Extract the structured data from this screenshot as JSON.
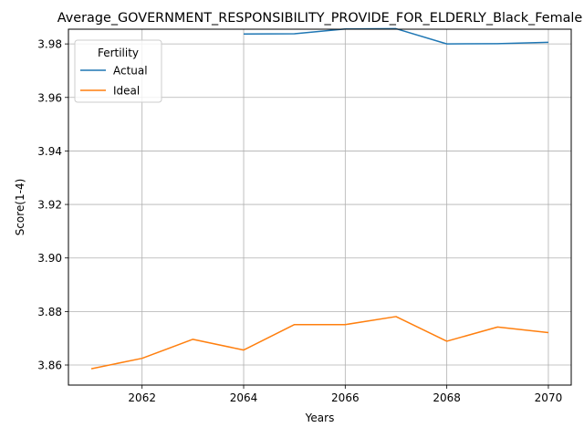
{
  "chart_data": {
    "type": "line",
    "title": "Average_GOVERNMENT_RESPONSIBILITY_PROVIDE_FOR_ELDERLY_Black_Female",
    "xlabel": "Years",
    "ylabel": "Score(1-4)",
    "xlim": [
      2060.55,
      2070.45
    ],
    "ylim": [
      3.8525,
      3.9855
    ],
    "xticks": [
      2062,
      2064,
      2066,
      2068,
      2070
    ],
    "yticks": [
      3.86,
      3.88,
      3.9,
      3.92,
      3.94,
      3.96,
      3.98
    ],
    "grid": true,
    "legend": {
      "title": "Fertility",
      "placement": "top-left"
    },
    "series": [
      {
        "name": "Actual",
        "color": "#1f77b4",
        "x": [
          2064,
          2065,
          2066,
          2067,
          2068,
          2069,
          2070
        ],
        "y": [
          3.9837,
          3.9838,
          3.9856,
          3.9857,
          3.98,
          3.9801,
          3.9806
        ]
      },
      {
        "name": "Ideal",
        "color": "#ff7f0e",
        "x": [
          2061,
          2062,
          2063,
          2064,
          2065,
          2066,
          2067,
          2068,
          2069,
          2070
        ],
        "y": [
          3.8586,
          3.8625,
          3.8696,
          3.8656,
          3.8751,
          3.8751,
          3.8781,
          3.8689,
          3.8742,
          3.8721
        ]
      }
    ]
  }
}
